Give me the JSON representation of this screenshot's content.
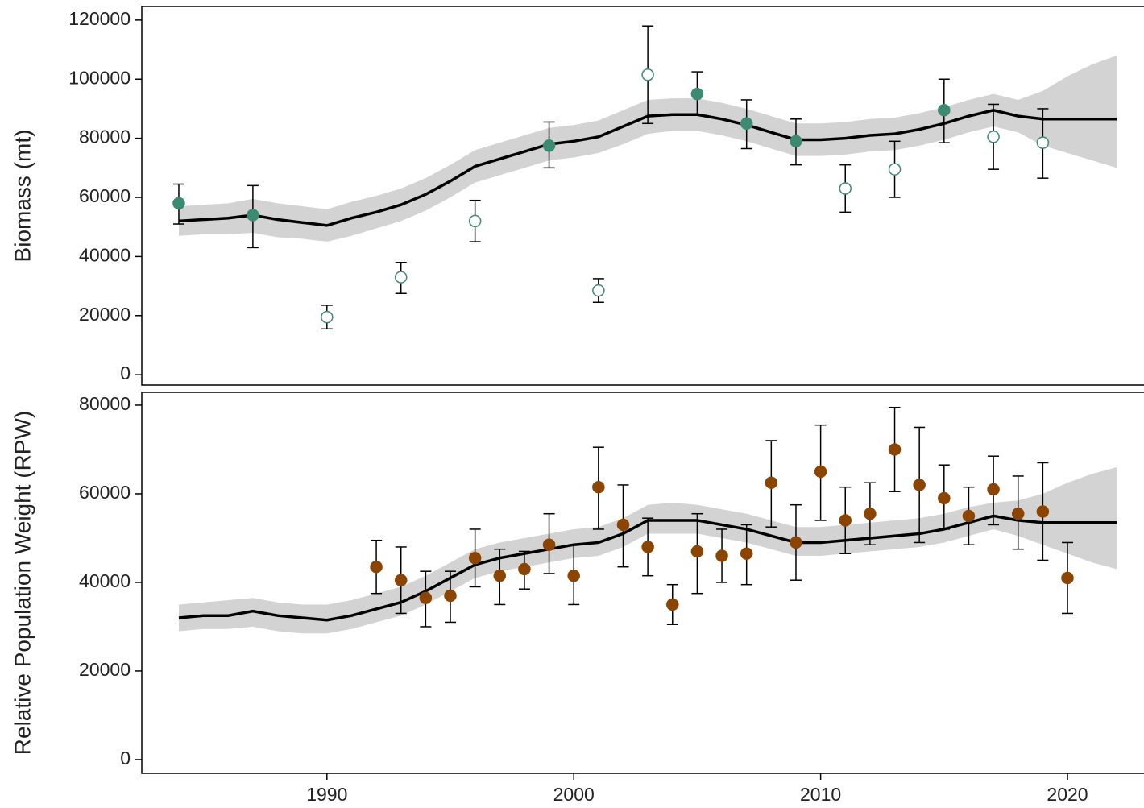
{
  "chart_data": [
    {
      "type": "line",
      "y_label": "Biomass (mt)",
      "xlim": [
        1982.5,
        2023.1
      ],
      "ylim": [
        -3500,
        124600
      ],
      "yticks": [
        0,
        20000,
        40000,
        60000,
        80000,
        100000,
        120000
      ],
      "x": [
        1984,
        1985,
        1986,
        1987,
        1988,
        1989,
        1990,
        1991,
        1992,
        1993,
        1994,
        1995,
        1996,
        1997,
        1998,
        1999,
        2000,
        2001,
        2002,
        2003,
        2004,
        2005,
        2006,
        2007,
        2008,
        2009,
        2010,
        2011,
        2012,
        2013,
        2014,
        2015,
        2016,
        2017,
        2018,
        2019,
        2020,
        2021,
        2022
      ],
      "fit": [
        52000,
        52500,
        53000,
        54000,
        52500,
        51500,
        50500,
        53000,
        55000,
        57500,
        61000,
        65500,
        70500,
        73000,
        75500,
        78000,
        79000,
        80500,
        84000,
        87500,
        88000,
        88000,
        86500,
        84500,
        82000,
        79500,
        79500,
        80000,
        81000,
        81500,
        83000,
        85000,
        87500,
        89500,
        87500,
        86500,
        86500,
        86500,
        86500
      ],
      "band_lower": [
        47000,
        47500,
        47500,
        48000,
        46500,
        46000,
        45000,
        47000,
        49500,
        52000,
        55500,
        60000,
        65000,
        67500,
        70000,
        72500,
        73500,
        75000,
        78000,
        81500,
        82500,
        82500,
        81000,
        79000,
        76500,
        74000,
        74000,
        74500,
        75500,
        76000,
        77500,
        79500,
        82000,
        84000,
        82000,
        77500,
        75000,
        72500,
        70000
      ],
      "band_upper": [
        57000,
        57500,
        58000,
        59500,
        58000,
        57000,
        56000,
        58500,
        60500,
        63000,
        66500,
        71000,
        76000,
        78500,
        81000,
        83500,
        84500,
        86000,
        89500,
        93000,
        93500,
        93500,
        92000,
        90000,
        87500,
        85000,
        85000,
        85500,
        86500,
        87000,
        88500,
        90500,
        93000,
        95000,
        93000,
        96000,
        101000,
        105000,
        108000
      ],
      "fit_color": "#000000",
      "band_color": "#d3d3d3",
      "series": [
        {
          "color": "#3d8a73",
          "filled": true,
          "x": [
            1984,
            1987,
            1999,
            2005,
            2007,
            2009,
            2015
          ],
          "values": [
            58000,
            54000,
            77500,
            95000,
            85000,
            79000,
            89500
          ],
          "lower": [
            51000,
            43000,
            70000,
            88000,
            76500,
            71000,
            78500
          ],
          "upper": [
            64500,
            64000,
            85500,
            102500,
            93000,
            86500,
            100000
          ]
        },
        {
          "color": "#3d8a73",
          "filled": false,
          "x": [
            1990,
            1993,
            1996,
            2001,
            2003,
            2011,
            2013,
            2017,
            2019
          ],
          "values": [
            19500,
            33000,
            52000,
            28500,
            101500,
            63000,
            69500,
            80500,
            78500
          ],
          "lower": [
            15500,
            27500,
            45000,
            24500,
            85000,
            55000,
            60000,
            69500,
            66500
          ],
          "upper": [
            23500,
            38000,
            59000,
            32500,
            118000,
            71000,
            79000,
            91500,
            90000
          ]
        }
      ]
    },
    {
      "type": "line",
      "y_label": "Relative Population Weight (RPW)",
      "xlim": [
        1982.5,
        2023.1
      ],
      "ylim": [
        -3100,
        82900
      ],
      "xticks": [
        1990,
        2000,
        2010,
        2020
      ],
      "yticks": [
        0,
        20000,
        40000,
        60000,
        80000
      ],
      "x": [
        1984,
        1985,
        1986,
        1987,
        1988,
        1989,
        1990,
        1991,
        1992,
        1993,
        1994,
        1995,
        1996,
        1997,
        1998,
        1999,
        2000,
        2001,
        2002,
        2003,
        2004,
        2005,
        2006,
        2007,
        2008,
        2009,
        2010,
        2011,
        2012,
        2013,
        2014,
        2015,
        2016,
        2017,
        2018,
        2019,
        2020,
        2021,
        2022
      ],
      "fit": [
        32000,
        32500,
        32500,
        33500,
        32500,
        32000,
        31500,
        32500,
        34000,
        35500,
        38000,
        41000,
        44000,
        45500,
        46500,
        47500,
        48500,
        49000,
        51000,
        54000,
        54000,
        54000,
        53000,
        52000,
        50500,
        49000,
        49000,
        49500,
        50000,
        50500,
        51000,
        52000,
        53500,
        55000,
        54000,
        53500,
        53500,
        53500,
        53500
      ],
      "band_lower": [
        29000,
        29500,
        29500,
        30000,
        29000,
        28500,
        28500,
        29500,
        31000,
        32500,
        35000,
        38000,
        41000,
        42500,
        43500,
        44500,
        45500,
        46000,
        48000,
        51000,
        51000,
        51000,
        50000,
        49000,
        47500,
        46000,
        46000,
        46500,
        47000,
        47500,
        48000,
        49000,
        50500,
        52000,
        50500,
        48500,
        46500,
        44500,
        43000
      ],
      "band_upper": [
        35000,
        35500,
        36000,
        36500,
        35500,
        35000,
        35000,
        36000,
        37500,
        39000,
        41500,
        44500,
        47500,
        49000,
        50000,
        51000,
        52000,
        52500,
        54500,
        57500,
        58000,
        57500,
        56500,
        55500,
        54000,
        52500,
        52500,
        53000,
        53500,
        54000,
        54500,
        55500,
        57000,
        58000,
        58500,
        60000,
        62500,
        64500,
        66000
      ],
      "fit_color": "#000000",
      "band_color": "#d3d3d3",
      "series": [
        {
          "color": "#8b4500",
          "filled": true,
          "x": [
            1992,
            1993,
            1994,
            1995,
            1996,
            1997,
            1998,
            1999,
            2000,
            2001,
            2002,
            2003,
            2004,
            2005,
            2006,
            2007,
            2008,
            2009,
            2010,
            2011,
            2012,
            2013,
            2014,
            2015,
            2016,
            2017,
            2018,
            2019,
            2020
          ],
          "values": [
            43500,
            40500,
            36500,
            37000,
            45500,
            41500,
            43000,
            48500,
            41500,
            61500,
            53000,
            48000,
            35000,
            47000,
            46000,
            46500,
            62500,
            49000,
            65000,
            54000,
            55500,
            70000,
            62000,
            59000,
            55000,
            61000,
            55500,
            56000,
            41000
          ],
          "lower": [
            37500,
            33000,
            30000,
            31000,
            39000,
            35000,
            38500,
            42000,
            35000,
            52000,
            43500,
            41500,
            30500,
            37500,
            40000,
            39500,
            52500,
            40500,
            54000,
            46500,
            48500,
            60500,
            49000,
            52000,
            48500,
            53000,
            47500,
            45000,
            33000
          ],
          "upper": [
            49500,
            48000,
            42500,
            42500,
            52000,
            47500,
            47000,
            55500,
            48500,
            70500,
            62000,
            54500,
            39500,
            55500,
            52000,
            53000,
            72000,
            57500,
            75500,
            61500,
            62500,
            79500,
            75000,
            66500,
            61500,
            68500,
            64000,
            67000,
            49000
          ]
        }
      ]
    }
  ]
}
